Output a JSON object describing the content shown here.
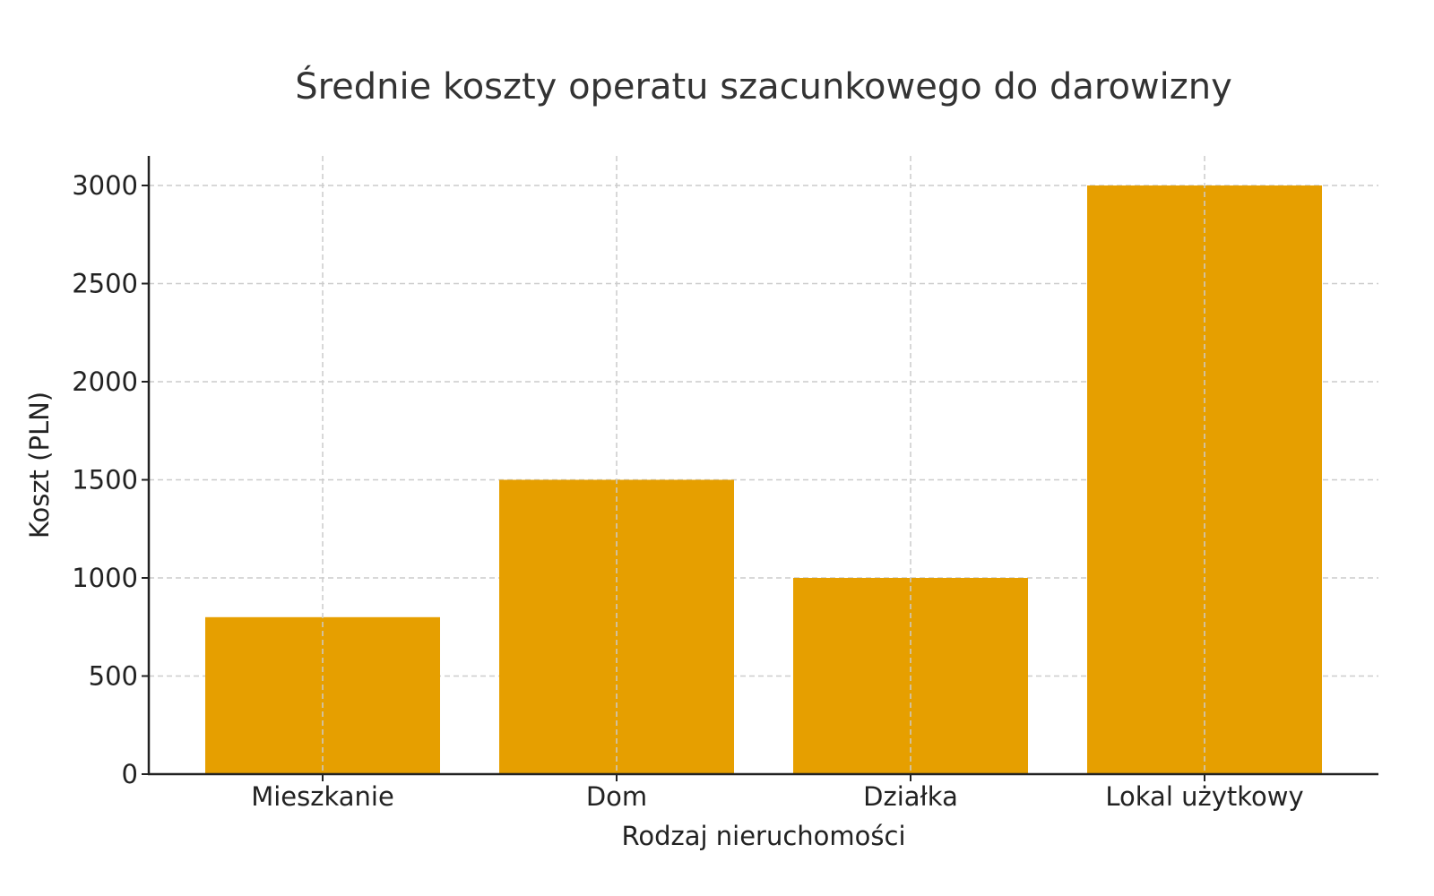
{
  "chart_data": {
    "type": "bar",
    "title": "Średnie koszty operatu szacunkowego do darowizny",
    "xlabel": "Rodzaj nieruchomości",
    "ylabel": "Koszt (PLN)",
    "categories": [
      "Mieszkanie",
      "Dom",
      "Działka",
      "Lokal użytkowy"
    ],
    "values": [
      800,
      1500,
      1000,
      3000
    ],
    "ylim": [
      0,
      3150
    ],
    "yticks": [
      0,
      500,
      1000,
      1500,
      2000,
      2500,
      3000
    ],
    "grid": true,
    "bar_color": "#E69F00",
    "legend": null
  }
}
